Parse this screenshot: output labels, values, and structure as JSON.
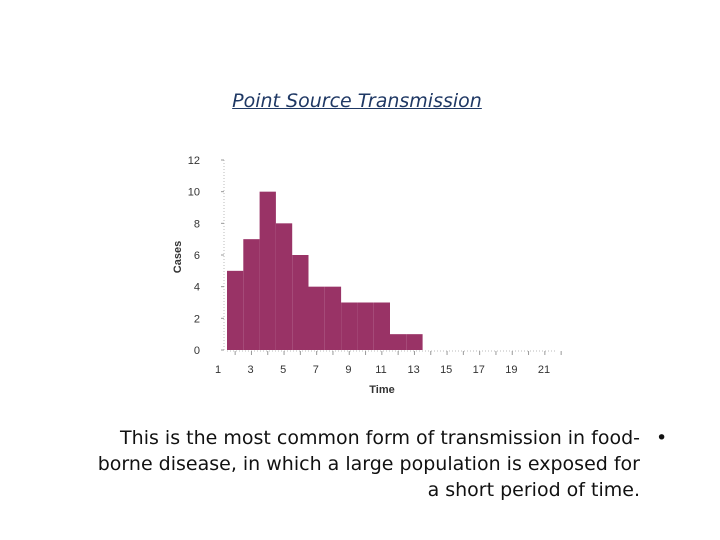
{
  "slide": {
    "title": "Point Source Transmission",
    "caption_lines": [
      "This is the most common form of transmission in food-",
      "borne disease, in which a large population is exposed for",
      "a short period of time."
    ],
    "bullet": "•"
  },
  "chart_data": {
    "type": "bar",
    "title": "",
    "xlabel": "Time",
    "ylabel": "Cases",
    "x": [
      1,
      2,
      3,
      4,
      5,
      6,
      7,
      8,
      9,
      10,
      11,
      12,
      13,
      14,
      15,
      16,
      17,
      18,
      19,
      20,
      21
    ],
    "values": [
      5,
      7,
      10,
      8,
      6,
      4,
      4,
      3,
      3,
      3,
      1,
      1,
      0,
      0,
      0,
      0,
      0,
      0,
      0,
      0,
      0
    ],
    "x_tick_labels": [
      "1",
      "3",
      "5",
      "7",
      "9",
      "11",
      "13",
      "15",
      "17",
      "19",
      "21"
    ],
    "y_ticks": [
      0,
      2,
      4,
      6,
      8,
      10,
      12
    ],
    "ylim": [
      0,
      12
    ],
    "bar_color": "#993366",
    "grid": false,
    "legend": "none"
  }
}
